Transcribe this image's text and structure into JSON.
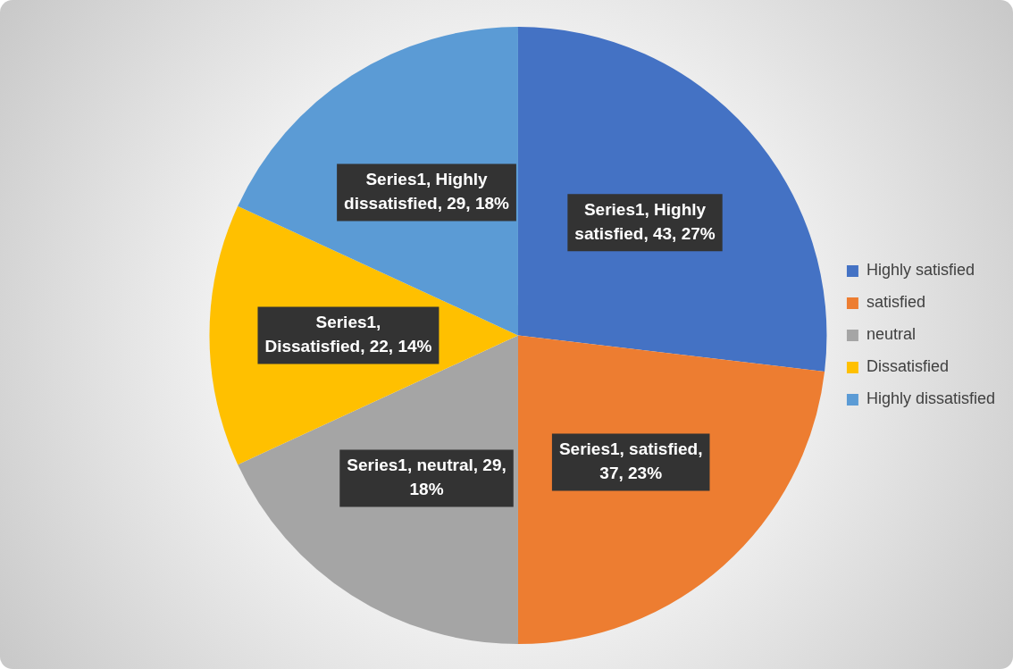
{
  "chart_data": {
    "type": "pie",
    "categories": [
      "Highly satisfied",
      "satisfied",
      "neutral",
      "Dissatisfied",
      "Highly dissatisfied"
    ],
    "values": [
      43,
      37,
      29,
      22,
      29
    ],
    "colors": [
      "#4472c4",
      "#ed7d31",
      "#a5a5a5",
      "#ffc000",
      "#5b9bd5"
    ],
    "value_labels": [
      "Series1, Highly satisfied, 43, 27%",
      "Series1, satisfied, 37, 23%",
      "Series1, neutral, 29, 18%",
      "Series1, Dissatisfied, 22, 14%",
      "Series1, Highly dissatisfied, 29, 18%"
    ],
    "legend": "right"
  }
}
